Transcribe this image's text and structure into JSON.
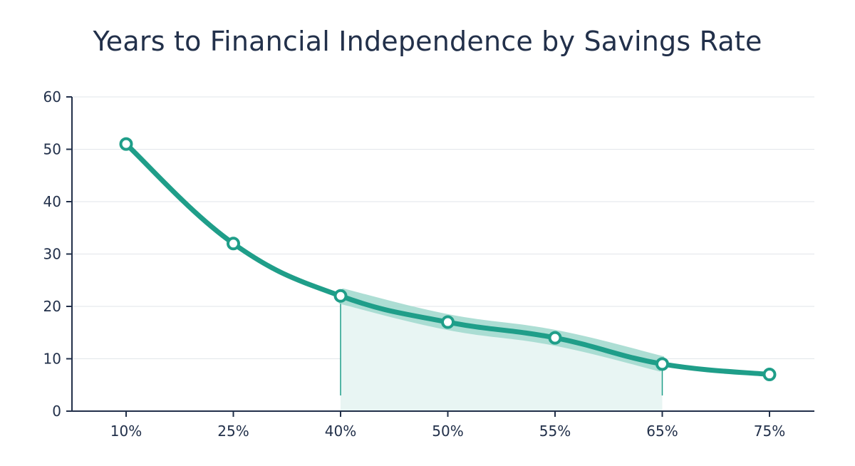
{
  "chart_data": {
    "type": "line",
    "title": "Years to Financial Independence by Savings Rate",
    "xlabel": "",
    "ylabel": "",
    "categories": [
      "10%",
      "25%",
      "40%",
      "50%",
      "55%",
      "65%",
      "75%"
    ],
    "values": [
      51,
      32,
      22,
      17,
      14,
      9,
      7
    ],
    "ylim": [
      0,
      60
    ],
    "yticks": [
      0,
      10,
      20,
      30,
      40,
      50,
      60
    ],
    "grid": true,
    "legend": "none",
    "highlight_range": {
      "from": "40%",
      "to": "65%"
    },
    "colors": {
      "line": "#1f9e89",
      "band": "#9fd8cd",
      "fill": "#e8f5f3",
      "axis": "#22304a",
      "grid": "#e2e6ea",
      "text": "#22304a"
    }
  }
}
